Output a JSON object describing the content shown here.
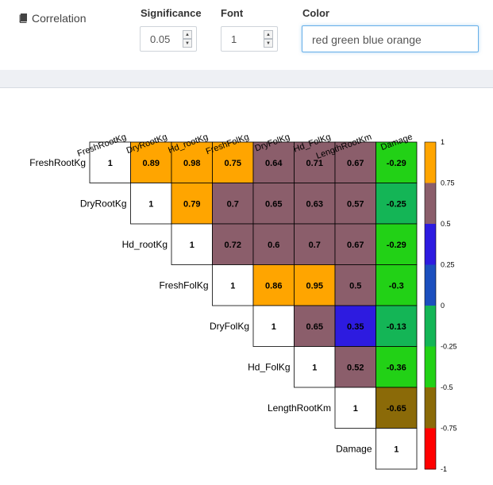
{
  "header": {
    "title": "Correlation",
    "title_icon": "book-icon"
  },
  "controls": {
    "significance": {
      "label": "Significance",
      "value": "0.05"
    },
    "font": {
      "label": "Font",
      "value": "1"
    },
    "color": {
      "label": "Color",
      "value": "red green blue orange"
    }
  },
  "chart_data": {
    "type": "heatmap",
    "variables": [
      "FreshRootKg",
      "DryRootKg",
      "Hd_rootKg",
      "FreshFolKg",
      "DryFolKg",
      "Hd_FolKg",
      "LengthRootKm",
      "Damage"
    ],
    "matrix": [
      [
        "1",
        "0.89",
        "0.98",
        "0.75",
        "0.64",
        "0.71",
        "0.67",
        "-0.29"
      ],
      [
        "",
        "1",
        "0.79",
        "0.7",
        "0.65",
        "0.63",
        "0.57",
        "-0.25"
      ],
      [
        "",
        "",
        "1",
        "0.72",
        "0.6",
        "0.7",
        "0.67",
        "-0.29"
      ],
      [
        "",
        "",
        "",
        "1",
        "0.86",
        "0.95",
        "0.5",
        "-0.3"
      ],
      [
        "",
        "",
        "",
        "",
        "1",
        "0.65",
        "0.35",
        "-0.13"
      ],
      [
        "",
        "",
        "",
        "",
        "",
        "1",
        "0.52",
        "-0.36"
      ],
      [
        "",
        "",
        "",
        "",
        "",
        "",
        "1",
        "-0.65"
      ],
      [
        "",
        "",
        "",
        "",
        "",
        "",
        "",
        "1"
      ]
    ],
    "colorbar": {
      "ticks": [
        "1",
        "0.75",
        "0.5",
        "0.25",
        "0",
        "-0.25",
        "-0.5",
        "-0.75",
        "-1"
      ],
      "bands": [
        {
          "min": 0.75,
          "max": 1,
          "color": "#FFA500"
        },
        {
          "min": 0.5,
          "max": 0.75,
          "color": "#8B5E6B"
        },
        {
          "min": 0.25,
          "max": 0.5,
          "color": "#2D1BE0"
        },
        {
          "min": 0,
          "max": 0.25,
          "color": "#1B4FBE"
        },
        {
          "min": -0.25,
          "max": 0,
          "color": "#14B556"
        },
        {
          "min": -0.5,
          "max": -0.25,
          "color": "#22D116"
        },
        {
          "min": -0.75,
          "max": -0.5,
          "color": "#8B6A08"
        },
        {
          "min": -1,
          "max": -0.75,
          "color": "#FF0000"
        }
      ]
    },
    "diagonal_color": "#FFFFFF"
  }
}
